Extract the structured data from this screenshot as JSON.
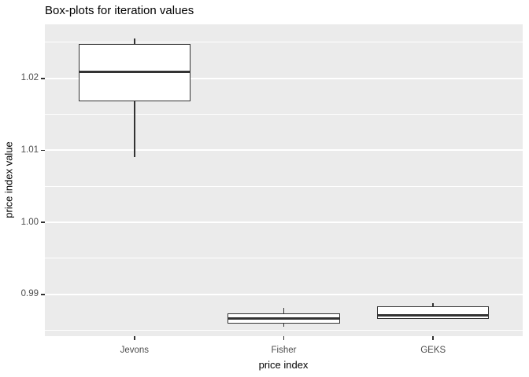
{
  "chart_data": {
    "type": "boxplot",
    "title": "Box-plots for iteration values",
    "xlabel": "price index",
    "ylabel": "price index value",
    "categories": [
      "Jevons",
      "Fisher",
      "GEKS"
    ],
    "series": [
      {
        "name": "Jevons",
        "whisker_low": 1.0091,
        "q1": 1.0168,
        "median": 1.0209,
        "q3": 1.0248,
        "whisker_high": 1.0255
      },
      {
        "name": "Fisher",
        "whisker_low": 0.9855,
        "q1": 0.9859,
        "median": 0.9867,
        "q3": 0.9874,
        "whisker_high": 0.9881
      },
      {
        "name": "GEKS",
        "whisker_low": 0.9866,
        "q1": 0.9866,
        "median": 0.9871,
        "q3": 0.9883,
        "whisker_high": 0.9888
      }
    ],
    "ylim": [
      0.9842,
      1.0275
    ],
    "yticks": [
      {
        "value": 0.99,
        "label": "0.99"
      },
      {
        "value": 1.0,
        "label": "1.00"
      },
      {
        "value": 1.01,
        "label": "1.01"
      },
      {
        "value": 1.02,
        "label": "1.02"
      }
    ],
    "yticks_minor": [
      0.985,
      0.995,
      1.005,
      1.015,
      1.025
    ],
    "grid": true,
    "legend": false
  },
  "colors": {
    "panel_bg": "#EBEBEB",
    "grid": "#FFFFFF",
    "tick_label": "#4D4D4D",
    "axis_title": "#000000",
    "plot_title": "#000000",
    "box_stroke": "#333333",
    "box_fill": "#FFFFFF"
  }
}
